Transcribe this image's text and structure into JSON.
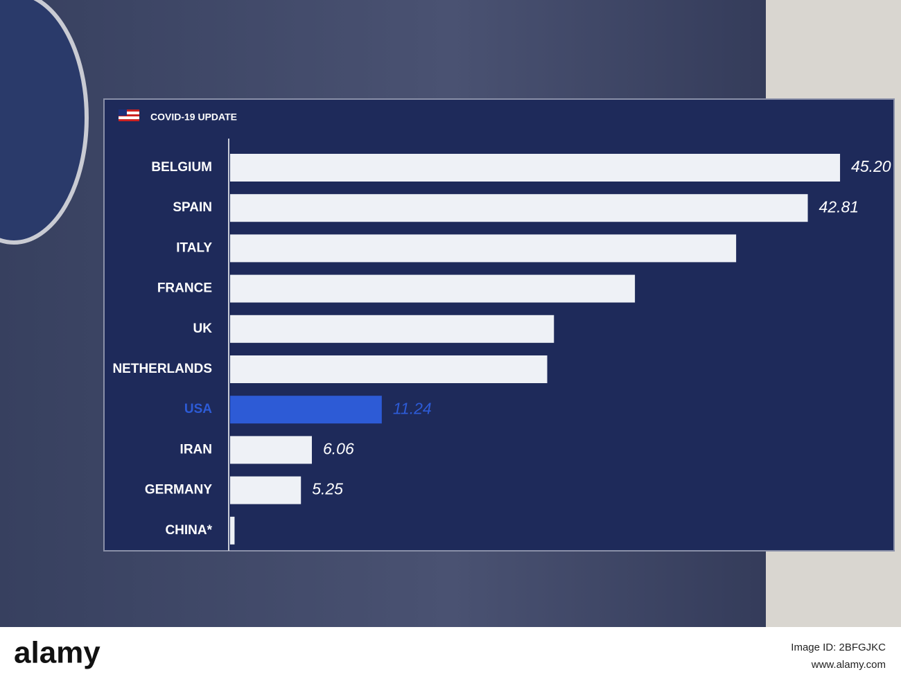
{
  "chart_data": {
    "type": "bar",
    "orientation": "horizontal",
    "title": "COVID-19 UPDATE",
    "categories": [
      "BELGIUM",
      "SPAIN",
      "ITALY",
      "FRANCE",
      "UK",
      "NETHERLANDS",
      "USA",
      "IRAN",
      "GERMANY",
      "CHINA*"
    ],
    "values": [
      45.2,
      42.81,
      37.5,
      30,
      24,
      23.5,
      11.24,
      6.06,
      5.25,
      0.33
    ],
    "value_labels": [
      "45.20",
      "42.81",
      null,
      null,
      null,
      null,
      "11.24",
      "6.06",
      "5.25",
      null
    ],
    "color": "#eef1f6",
    "highlight": {
      "index": 6,
      "color": "#2d5bd6"
    }
  },
  "watermark": {
    "brand": "alamy",
    "image_id": "Image ID: 2BFGJKC",
    "site": "www.alamy.com"
  }
}
